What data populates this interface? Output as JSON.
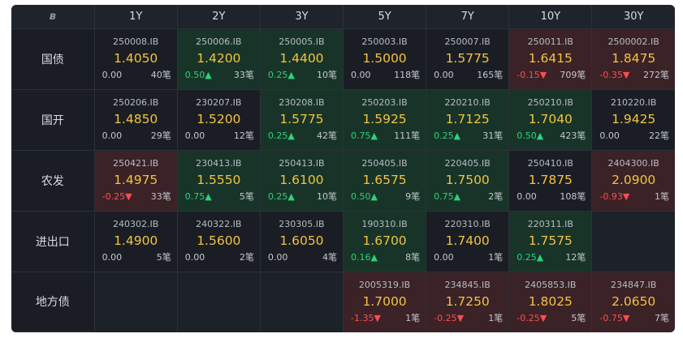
{
  "header": {
    "logo": "ʙ",
    "tenors": [
      "1Y",
      "2Y",
      "3Y",
      "5Y",
      "7Y",
      "10Y",
      "30Y"
    ]
  },
  "rows": [
    {
      "label": "国债",
      "cells": [
        {
          "code": "250008.IB",
          "price": "1.4050",
          "change": "0.00",
          "count": "40笔",
          "dir": "flat"
        },
        {
          "code": "250006.IB",
          "price": "1.4200",
          "change": "0.50▲",
          "count": "33笔",
          "dir": "up"
        },
        {
          "code": "250005.IB",
          "price": "1.4400",
          "change": "0.25▲",
          "count": "10笔",
          "dir": "up"
        },
        {
          "code": "250003.IB",
          "price": "1.5000",
          "change": "0.00",
          "count": "118笔",
          "dir": "flat"
        },
        {
          "code": "250007.IB",
          "price": "1.5775",
          "change": "0.00",
          "count": "165笔",
          "dir": "flat"
        },
        {
          "code": "250011.IB",
          "price": "1.6415",
          "change": "-0.15▼",
          "count": "709笔",
          "dir": "down"
        },
        {
          "code": "2500002.IB",
          "price": "1.8475",
          "change": "-0.35▼",
          "count": "272笔",
          "dir": "down"
        }
      ]
    },
    {
      "label": "国开",
      "cells": [
        {
          "code": "250206.IB",
          "price": "1.4850",
          "change": "0.00",
          "count": "29笔",
          "dir": "flat"
        },
        {
          "code": "230207.IB",
          "price": "1.5200",
          "change": "0.00",
          "count": "12笔",
          "dir": "flat"
        },
        {
          "code": "230208.IB",
          "price": "1.5775",
          "change": "0.25▲",
          "count": "42笔",
          "dir": "up"
        },
        {
          "code": "250203.IB",
          "price": "1.5925",
          "change": "0.75▲",
          "count": "111笔",
          "dir": "up"
        },
        {
          "code": "220210.IB",
          "price": "1.7125",
          "change": "0.25▲",
          "count": "31笔",
          "dir": "up"
        },
        {
          "code": "250210.IB",
          "price": "1.7040",
          "change": "0.50▲",
          "count": "423笔",
          "dir": "up"
        },
        {
          "code": "210220.IB",
          "price": "1.9425",
          "change": "0.00",
          "count": "22笔",
          "dir": "flat"
        }
      ]
    },
    {
      "label": "农发",
      "cells": [
        {
          "code": "250421.IB",
          "price": "1.4975",
          "change": "-0.25▼",
          "count": "33笔",
          "dir": "down"
        },
        {
          "code": "230413.IB",
          "price": "1.5550",
          "change": "0.75▲",
          "count": "5笔",
          "dir": "up"
        },
        {
          "code": "250413.IB",
          "price": "1.6100",
          "change": "0.25▲",
          "count": "10笔",
          "dir": "up"
        },
        {
          "code": "250405.IB",
          "price": "1.6575",
          "change": "0.50▲",
          "count": "9笔",
          "dir": "up"
        },
        {
          "code": "220405.IB",
          "price": "1.7500",
          "change": "0.75▲",
          "count": "2笔",
          "dir": "up"
        },
        {
          "code": "250410.IB",
          "price": "1.7875",
          "change": "0.00",
          "count": "108笔",
          "dir": "flat"
        },
        {
          "code": "2404300.IB",
          "price": "2.0900",
          "change": "-0.93▼",
          "count": "1笔",
          "dir": "down"
        }
      ]
    },
    {
      "label": "进出口",
      "cells": [
        {
          "code": "240302.IB",
          "price": "1.4900",
          "change": "0.00",
          "count": "5笔",
          "dir": "flat"
        },
        {
          "code": "240322.IB",
          "price": "1.5600",
          "change": "0.00",
          "count": "2笔",
          "dir": "flat"
        },
        {
          "code": "230305.IB",
          "price": "1.6050",
          "change": "0.00",
          "count": "4笔",
          "dir": "flat"
        },
        {
          "code": "190310.IB",
          "price": "1.6700",
          "change": "0.16▲",
          "count": "8笔",
          "dir": "up"
        },
        {
          "code": "220310.IB",
          "price": "1.7400",
          "change": "0.00",
          "count": "1笔",
          "dir": "flat"
        },
        {
          "code": "220311.IB",
          "price": "1.7575",
          "change": "0.25▲",
          "count": "12笔",
          "dir": "up"
        },
        null
      ]
    },
    {
      "label": "地方债",
      "cells": [
        null,
        null,
        null,
        {
          "code": "2005319.IB",
          "price": "1.7000",
          "change": "-1.35▼",
          "count": "1笔",
          "dir": "down"
        },
        {
          "code": "234845.IB",
          "price": "1.7250",
          "change": "-0.25▼",
          "count": "1笔",
          "dir": "down"
        },
        {
          "code": "2405853.IB",
          "price": "1.8025",
          "change": "-0.25▼",
          "count": "5笔",
          "dir": "down"
        },
        {
          "code": "234847.IB",
          "price": "2.0650",
          "change": "-0.75▼",
          "count": "7笔",
          "dir": "down"
        }
      ]
    }
  ],
  "colors": {
    "background": "#161a20",
    "price": "#f3c242",
    "up": "#2fd17a",
    "down": "#ff4d4f",
    "up_bg": "#183428",
    "down_bg": "#3a2227"
  }
}
